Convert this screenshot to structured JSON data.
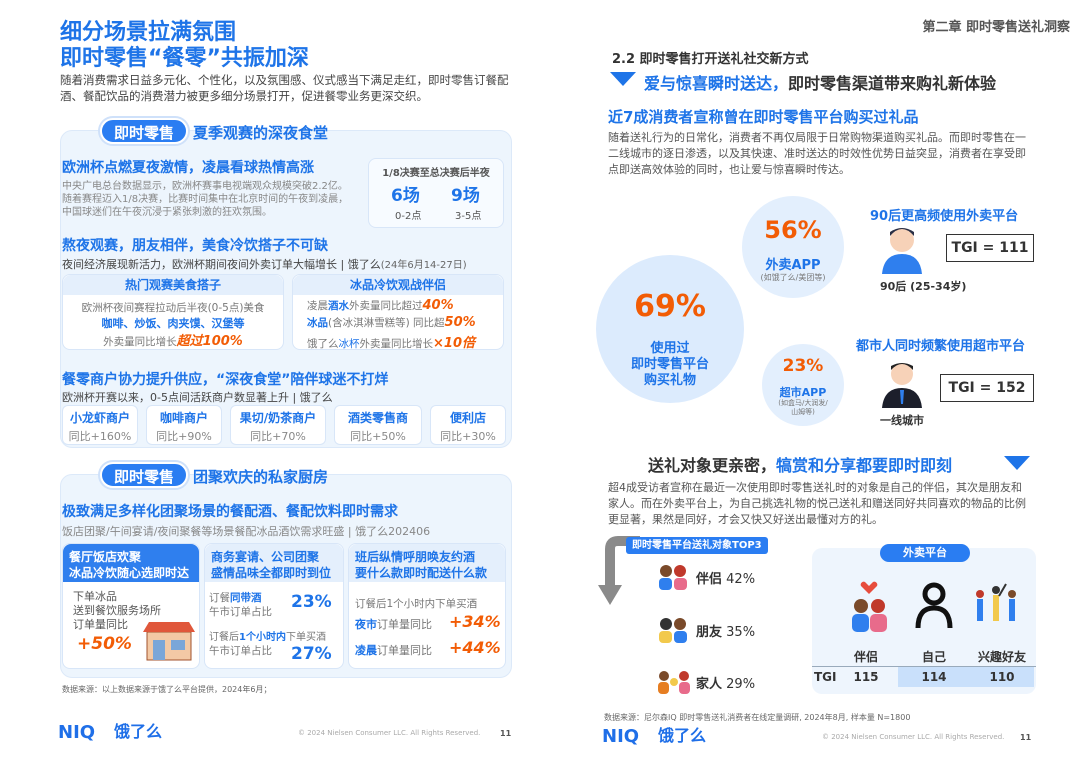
{
  "left": {
    "title1": "细分场景拉满氛围",
    "title2": "即时零售“餐零”共振加深",
    "intro": "随着消费需求日益多元化、个性化，以及氛围感、仪式感当下满足走红，即时零售订餐配酒、餐配饮品的消费潜力被更多细分场景打开，促进餐零业务更深交织。",
    "s1": {
      "pill": "即时零售",
      "title": "夏季观赛的深夜食堂",
      "h1": "欧洲杯点燃夏夜激情，凌晨看球热情高涨",
      "p1": "中央广电总台数据显示，欧洲杯赛事电视端观众规模突破2.2亿。随着赛程迈入1/8决赛，比赛时间集中在北京时间的午夜到凌晨，中国球迷们在午夜沉浸于紧张刺激的狂欢氛围。",
      "box_title": "1/8决赛至总决赛后半夜",
      "b1_val": "6场",
      "b1_sub": "0-2点",
      "b2_val": "9场",
      "b2_sub": "3-5点",
      "h2": "熬夜观赛，朋友相伴，美食冷饮搭子不可缺",
      "p2": "夜间经济展现新活力，欧洲杯期间夜间外卖订单大幅增长 | 饿了么",
      "p2_src": "(24年6月14-27日)",
      "c1_title": "热门观赛美食搭子",
      "c1_l1": "欧洲杯夜间赛程拉动后半夜(0-5点)美食",
      "c1_l2": "咖啡、炒饭、肉夹馍、汉堡等",
      "c1_l3a": "外卖量同比增长",
      "c1_l3b": "超过100%",
      "c2_title": "冰品冷饮观战伴侣",
      "c2_l1a": "凌晨",
      "c2_l1b": "酒水",
      "c2_l1c": "外卖量同比超过",
      "c2_l1d": "40%",
      "c2_l2a": "冰品",
      "c2_l2b": "(含冰淇淋雪糕等) 同比超",
      "c2_l2c": "50%",
      "c2_l3a": "饿了么",
      "c2_l3b": "冰杯",
      "c2_l3c": "外卖量同比增长",
      "c2_l3d": "×10倍",
      "h3": "餐零商户协力提升供应，“深夜食堂”陪伴球迷不打烊",
      "p3": "欧洲杯开赛以来，0-5点间活跃商户数显著上升 | 饿了么",
      "tags": [
        {
          "t": "小龙虾商户",
          "v": "同比+160%"
        },
        {
          "t": "咖啡商户",
          "v": "同比+90%"
        },
        {
          "t": "果切/奶茶商户",
          "v": "同比+70%"
        },
        {
          "t": "酒类零售商",
          "v": "同比+50%"
        },
        {
          "t": "便利店",
          "v": "同比+30%"
        }
      ]
    },
    "s2": {
      "pill": "即时零售",
      "title": "团聚欢庆的私家厨房",
      "h1": "极致满足多样化团聚场景的餐配酒、餐配饮料即时需求",
      "p1": "饭店团聚/午间宴请/夜间聚餐等场景餐配冰品酒饮需求旺盛 | 饿了么202406",
      "c1_title1": "餐厅饭店欢聚",
      "c1_title2": "冰品冷饮随心选即时达",
      "c1_l1": "下单冰品",
      "c1_l2": "送到餐饮服务场所",
      "c1_l3": "订单量同比",
      "c1_val": "+50%",
      "c2_title1": "商务宴请、公司团聚",
      "c2_title2": "盛情品味全都即时到位",
      "c2_l1a": "订餐",
      "c2_l1b": "同带酒",
      "c2_l2": "午市订单占比",
      "c2_v1": "23%",
      "c2_l3a": "订餐后",
      "c2_l3b": "1个小时内",
      "c2_l3c": "下单买酒",
      "c2_l4": "午市订单占比",
      "c2_v2": "27%",
      "c3_title1": "班后纵情呼朋唤友约酒",
      "c3_title2": "要什么款即时配送什么款",
      "c3_l1": "订餐后1个小时内下单买酒",
      "c3_l2a": "夜市",
      "c3_l2b": "订单量同比",
      "c3_v1": "+34%",
      "c3_l3a": "凌晨",
      "c3_l3b": "订单量同比",
      "c3_v2": "+44%"
    },
    "source": "数据来源：以上数据来源于饿了么平台提供，2024年6月；",
    "logo1": "NIQ",
    "logo2": "饿了么",
    "copyright": "© 2024 Nielsen Consumer LLC. All Rights Reserved.",
    "page": "11"
  },
  "right": {
    "chapter": "第二章 即时零售送礼洞察",
    "sec_num": "2.2 即时零售打开送礼社交新方式",
    "banner_a": "爱与惊喜瞬时送达，",
    "banner_b": "即时零售渠道带来购礼新体验",
    "h1": "近7成消费者宣称曾在即时零售平台购买过礼品",
    "p1": "随着送礼行为的日常化，消费者不再仅局限于日常购物渠道购买礼品。而即时零售在一二线城市的逐日渗透，以及其快速、准时送达的时效性优势日益突显，消费者在享受即点即送高效体验的同时，也让爱与惊喜瞬时传达。",
    "big_pct": "69%",
    "big_l1": "使用过",
    "big_l2": "即时零售平台",
    "big_l3": "购买礼物",
    "c56_pct": "56%",
    "c56_l1": "外卖APP",
    "c56_l2": "(如饿了么/美团等)",
    "c23_pct": "23%",
    "c23_l1": "超市APP",
    "c23_l2": "(如盒马/大润发/",
    "c23_l3": "山姆等)",
    "g1_title": "90后更高频使用外卖平台",
    "g1_tgi": "TGI = 111",
    "g1_label": "90后 (25-34岁)",
    "g2_title": "都市人同时频繁使用超市平台",
    "g2_tgi": "TGI = 152",
    "g2_label": "一线城市",
    "h2a": "送礼对象更亲密，",
    "h2b": "犒赏和分享都要即时即刻",
    "p2": "超4成受访者宣称在最近一次使用即时零售送礼时的对象是自己的伴侣，其次是朋友和家人。而在外卖平台上，为自己挑选礼物的悦己送礼和赠送同好共同喜欢的物品的比例更显著，果然是同好，才会又快又好送出最懂对方的礼。",
    "top3_title": "即时零售平台送礼对象TOP3",
    "top3": [
      {
        "label": "伴侣",
        "pct": "42%"
      },
      {
        "label": "朋友",
        "pct": "35%"
      },
      {
        "label": "家人",
        "pct": "29%"
      }
    ],
    "platform_title": "外卖平台",
    "tgi_row_label": "TGI",
    "tgi_cols": [
      {
        "label": "伴侣",
        "val": "115"
      },
      {
        "label": "自己",
        "val": "114"
      },
      {
        "label": "兴趣好友",
        "val": "110"
      }
    ],
    "source": "数据来源：尼尔森IQ 即时零售送礼消费者在线定量调研, 2024年8月, 样本量 N=1800",
    "logo1": "NIQ",
    "logo2": "饿了么",
    "copyright": "© 2024 Nielsen Consumer LLC. All Rights Reserved.",
    "page": "11"
  },
  "colors": {
    "accent": "#1e74e8",
    "highlight": "#f25c05",
    "panel": "#edf5fd"
  }
}
